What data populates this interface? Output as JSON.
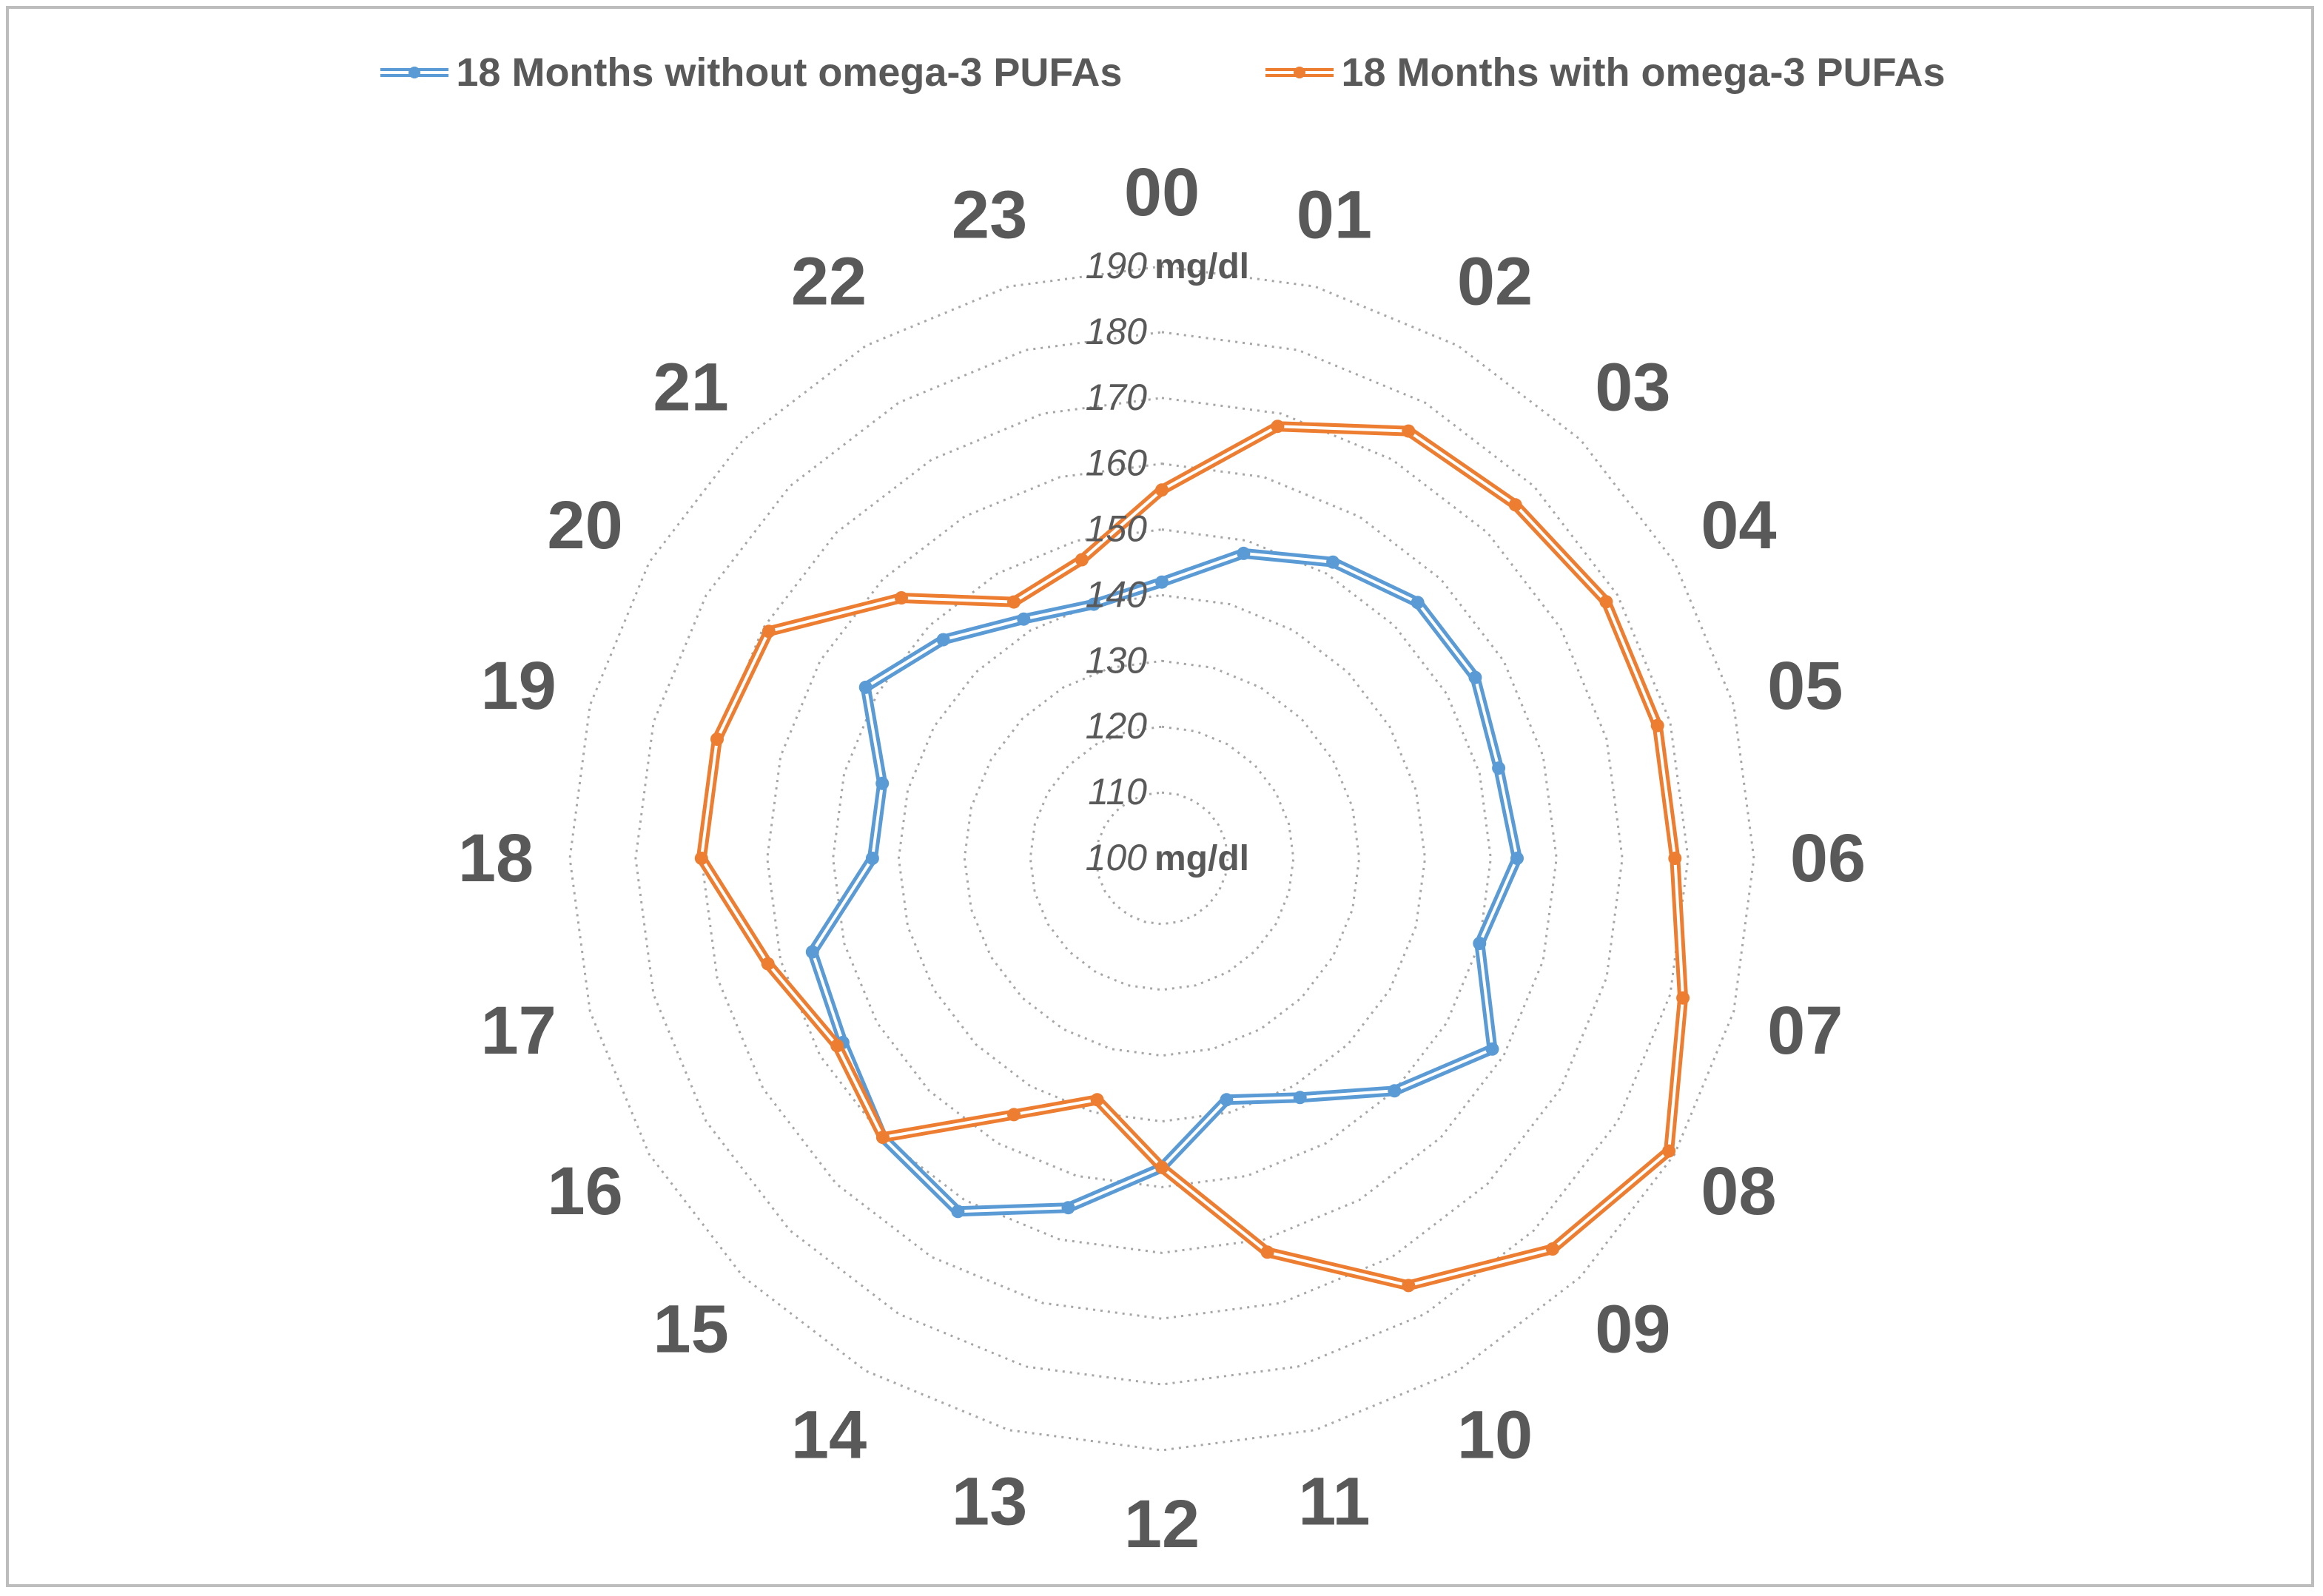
{
  "chart_data": {
    "type": "radar",
    "title": "",
    "unit": "mg/dl",
    "categories": [
      "00",
      "01",
      "02",
      "03",
      "04",
      "05",
      "06",
      "07",
      "08",
      "09",
      "10",
      "11",
      "12",
      "13",
      "14",
      "15",
      "16",
      "17",
      "18",
      "19",
      "20",
      "21",
      "22",
      "23"
    ],
    "rlim": [
      100,
      190
    ],
    "ticks": [
      100,
      110,
      120,
      130,
      140,
      150,
      160,
      170,
      180,
      190
    ],
    "grid": "dotted polygons",
    "legend_position": "top",
    "series": [
      {
        "name": "18 Months without omega-3 PUFAs",
        "color": "#5b9bd5",
        "values": [
          142,
          148,
          152,
          155,
          155,
          153,
          154,
          150,
          158,
          150,
          142,
          138,
          147,
          155,
          162,
          160,
          156,
          155,
          144,
          144,
          152,
          147,
          142,
          140
        ]
      },
      {
        "name": "18 Months with omega-3 PUFAs",
        "color": "#ed7d31",
        "values": [
          156,
          168,
          175,
          176,
          178,
          178,
          178,
          182,
          189,
          184,
          175,
          162,
          147,
          138,
          145,
          160,
          157,
          162,
          170,
          170,
          169,
          156,
          145,
          147
        ]
      }
    ]
  }
}
